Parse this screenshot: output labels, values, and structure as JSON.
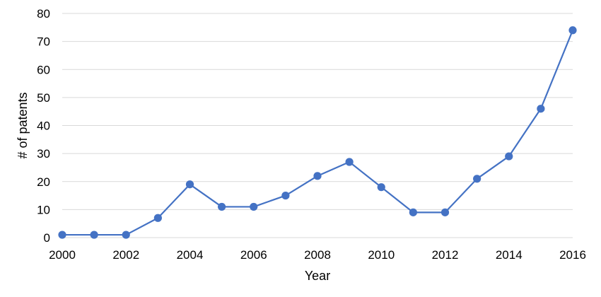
{
  "chart_data": {
    "type": "line",
    "title": "",
    "xlabel": "Year",
    "ylabel": "# of patents",
    "x": [
      2000,
      2001,
      2002,
      2003,
      2004,
      2005,
      2006,
      2007,
      2008,
      2009,
      2010,
      2011,
      2012,
      2013,
      2014,
      2015,
      2016
    ],
    "series": [
      {
        "values": [
          1,
          1,
          1,
          7,
          19,
          11,
          11,
          15,
          22,
          27,
          18,
          9,
          9,
          21,
          29,
          46,
          74
        ],
        "color": "#4472C4"
      }
    ],
    "xlim": [
      2000,
      2016
    ],
    "ylim": [
      0,
      80
    ],
    "x_ticks": [
      "2000",
      "2002",
      "2004",
      "2006",
      "2008",
      "2010",
      "2012",
      "2014",
      "2016"
    ],
    "y_ticks": [
      "0",
      "10",
      "20",
      "30",
      "40",
      "50",
      "60",
      "70",
      "80"
    ],
    "grid": "horizontal",
    "gridline_color": "#d9d9d9",
    "legend": "none"
  }
}
